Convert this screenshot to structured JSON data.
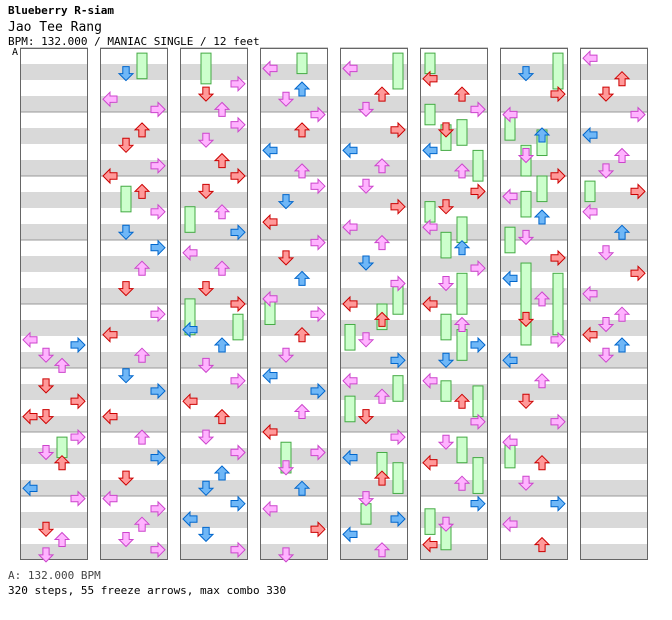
{
  "header": {
    "artist": "Blueberry R-siam",
    "title": "Jao Tee Rang",
    "info": "BPM: 132.000 / MANIAC SINGLE / 12 feet"
  },
  "marker": "A",
  "footer": {
    "bpm": "A: 132.000 BPM",
    "stats": "320 steps, 55 freeze arrows, max combo 330"
  },
  "colors": {
    "note_red": "#ff9999",
    "note_blue": "#6fb7f7",
    "note_pink": "#ffb3ff",
    "freeze": "#ccffcc"
  },
  "chart_data": {
    "type": "table",
    "columns": 8,
    "measures_per_column": 8,
    "lanes": [
      "left",
      "down",
      "up",
      "right"
    ],
    "notes": [
      {
        "c": 0,
        "l": 0,
        "y": 0.57
      },
      {
        "c": 0,
        "l": 1,
        "y": 0.6
      },
      {
        "c": 0,
        "l": 2,
        "y": 0.62
      },
      {
        "c": 0,
        "l": 3,
        "y": 0.58
      },
      {
        "c": 0,
        "l": 1,
        "y": 0.66
      },
      {
        "c": 0,
        "l": 3,
        "y": 0.69
      },
      {
        "c": 0,
        "l": 0,
        "y": 0.72
      },
      {
        "c": 0,
        "l": 1,
        "y": 0.72
      },
      {
        "c": 0,
        "l": 3,
        "y": 0.76
      },
      {
        "c": 0,
        "l": 1,
        "y": 0.79
      },
      {
        "c": 0,
        "l": 2,
        "y": 0.81
      },
      {
        "c": 0,
        "l": 0,
        "y": 0.86
      },
      {
        "c": 0,
        "l": 3,
        "y": 0.88
      },
      {
        "c": 0,
        "l": 1,
        "y": 0.94
      },
      {
        "c": 0,
        "l": 2,
        "y": 0.96
      },
      {
        "c": 0,
        "l": 1,
        "y": 0.99
      },
      {
        "c": 1,
        "l": 1,
        "y": 0.05
      },
      {
        "c": 1,
        "l": 3,
        "y": 0.12
      },
      {
        "c": 1,
        "l": 0,
        "y": 0.1
      },
      {
        "c": 1,
        "l": 2,
        "y": 0.16
      },
      {
        "c": 1,
        "l": 1,
        "y": 0.19
      },
      {
        "c": 1,
        "l": 3,
        "y": 0.23
      },
      {
        "c": 1,
        "l": 0,
        "y": 0.25
      },
      {
        "c": 1,
        "l": 2,
        "y": 0.28
      },
      {
        "c": 1,
        "l": 3,
        "y": 0.32
      },
      {
        "c": 1,
        "l": 1,
        "y": 0.36
      },
      {
        "c": 1,
        "l": 3,
        "y": 0.39
      },
      {
        "c": 1,
        "l": 2,
        "y": 0.43
      },
      {
        "c": 1,
        "l": 1,
        "y": 0.47
      },
      {
        "c": 1,
        "l": 3,
        "y": 0.52
      },
      {
        "c": 1,
        "l": 0,
        "y": 0.56
      },
      {
        "c": 1,
        "l": 2,
        "y": 0.6
      },
      {
        "c": 1,
        "l": 1,
        "y": 0.64
      },
      {
        "c": 1,
        "l": 3,
        "y": 0.67
      },
      {
        "c": 1,
        "l": 0,
        "y": 0.72
      },
      {
        "c": 1,
        "l": 2,
        "y": 0.76
      },
      {
        "c": 1,
        "l": 3,
        "y": 0.8
      },
      {
        "c": 1,
        "l": 1,
        "y": 0.84
      },
      {
        "c": 1,
        "l": 0,
        "y": 0.88
      },
      {
        "c": 1,
        "l": 3,
        "y": 0.9
      },
      {
        "c": 1,
        "l": 2,
        "y": 0.93
      },
      {
        "c": 1,
        "l": 1,
        "y": 0.96
      },
      {
        "c": 1,
        "l": 3,
        "y": 0.98
      },
      {
        "c": 2,
        "l": 3,
        "y": 0.07
      },
      {
        "c": 2,
        "l": 1,
        "y": 0.09
      },
      {
        "c": 2,
        "l": 2,
        "y": 0.12
      },
      {
        "c": 2,
        "l": 3,
        "y": 0.15
      },
      {
        "c": 2,
        "l": 1,
        "y": 0.18
      },
      {
        "c": 2,
        "l": 2,
        "y": 0.22
      },
      {
        "c": 2,
        "l": 3,
        "y": 0.25
      },
      {
        "c": 2,
        "l": 1,
        "y": 0.28
      },
      {
        "c": 2,
        "l": 2,
        "y": 0.32
      },
      {
        "c": 2,
        "l": 3,
        "y": 0.36
      },
      {
        "c": 2,
        "l": 0,
        "y": 0.4
      },
      {
        "c": 2,
        "l": 2,
        "y": 0.43
      },
      {
        "c": 2,
        "l": 1,
        "y": 0.47
      },
      {
        "c": 2,
        "l": 3,
        "y": 0.5
      },
      {
        "c": 2,
        "l": 0,
        "y": 0.55
      },
      {
        "c": 2,
        "l": 2,
        "y": 0.58
      },
      {
        "c": 2,
        "l": 1,
        "y": 0.62
      },
      {
        "c": 2,
        "l": 3,
        "y": 0.65
      },
      {
        "c": 2,
        "l": 0,
        "y": 0.69
      },
      {
        "c": 2,
        "l": 2,
        "y": 0.72
      },
      {
        "c": 2,
        "l": 1,
        "y": 0.76
      },
      {
        "c": 2,
        "l": 3,
        "y": 0.79
      },
      {
        "c": 2,
        "l": 2,
        "y": 0.83
      },
      {
        "c": 2,
        "l": 1,
        "y": 0.86
      },
      {
        "c": 2,
        "l": 3,
        "y": 0.89
      },
      {
        "c": 2,
        "l": 0,
        "y": 0.92
      },
      {
        "c": 2,
        "l": 1,
        "y": 0.95
      },
      {
        "c": 2,
        "l": 3,
        "y": 0.98
      },
      {
        "c": 3,
        "l": 0,
        "y": 0.04
      },
      {
        "c": 3,
        "l": 2,
        "y": 0.08
      },
      {
        "c": 3,
        "l": 1,
        "y": 0.1
      },
      {
        "c": 3,
        "l": 3,
        "y": 0.13
      },
      {
        "c": 3,
        "l": 2,
        "y": 0.16
      },
      {
        "c": 3,
        "l": 0,
        "y": 0.2
      },
      {
        "c": 3,
        "l": 2,
        "y": 0.24
      },
      {
        "c": 3,
        "l": 3,
        "y": 0.27
      },
      {
        "c": 3,
        "l": 1,
        "y": 0.3
      },
      {
        "c": 3,
        "l": 0,
        "y": 0.34
      },
      {
        "c": 3,
        "l": 3,
        "y": 0.38
      },
      {
        "c": 3,
        "l": 1,
        "y": 0.41
      },
      {
        "c": 3,
        "l": 2,
        "y": 0.45
      },
      {
        "c": 3,
        "l": 0,
        "y": 0.49
      },
      {
        "c": 3,
        "l": 3,
        "y": 0.52
      },
      {
        "c": 3,
        "l": 2,
        "y": 0.56
      },
      {
        "c": 3,
        "l": 1,
        "y": 0.6
      },
      {
        "c": 3,
        "l": 0,
        "y": 0.64
      },
      {
        "c": 3,
        "l": 3,
        "y": 0.67
      },
      {
        "c": 3,
        "l": 2,
        "y": 0.71
      },
      {
        "c": 3,
        "l": 0,
        "y": 0.75
      },
      {
        "c": 3,
        "l": 3,
        "y": 0.79
      },
      {
        "c": 3,
        "l": 1,
        "y": 0.82
      },
      {
        "c": 3,
        "l": 2,
        "y": 0.86
      },
      {
        "c": 3,
        "l": 0,
        "y": 0.9
      },
      {
        "c": 3,
        "l": 3,
        "y": 0.94
      },
      {
        "c": 3,
        "l": 1,
        "y": 0.99
      },
      {
        "c": 4,
        "l": 0,
        "y": 0.04
      },
      {
        "c": 4,
        "l": 2,
        "y": 0.09
      },
      {
        "c": 4,
        "l": 1,
        "y": 0.12
      },
      {
        "c": 4,
        "l": 3,
        "y": 0.16
      },
      {
        "c": 4,
        "l": 0,
        "y": 0.2
      },
      {
        "c": 4,
        "l": 2,
        "y": 0.23
      },
      {
        "c": 4,
        "l": 1,
        "y": 0.27
      },
      {
        "c": 4,
        "l": 3,
        "y": 0.31
      },
      {
        "c": 4,
        "l": 0,
        "y": 0.35
      },
      {
        "c": 4,
        "l": 2,
        "y": 0.38
      },
      {
        "c": 4,
        "l": 1,
        "y": 0.42
      },
      {
        "c": 4,
        "l": 3,
        "y": 0.46
      },
      {
        "c": 4,
        "l": 0,
        "y": 0.5
      },
      {
        "c": 4,
        "l": 2,
        "y": 0.53
      },
      {
        "c": 4,
        "l": 1,
        "y": 0.57
      },
      {
        "c": 4,
        "l": 3,
        "y": 0.61
      },
      {
        "c": 4,
        "l": 0,
        "y": 0.65
      },
      {
        "c": 4,
        "l": 2,
        "y": 0.68
      },
      {
        "c": 4,
        "l": 1,
        "y": 0.72
      },
      {
        "c": 4,
        "l": 3,
        "y": 0.76
      },
      {
        "c": 4,
        "l": 0,
        "y": 0.8
      },
      {
        "c": 4,
        "l": 2,
        "y": 0.84
      },
      {
        "c": 4,
        "l": 1,
        "y": 0.88
      },
      {
        "c": 4,
        "l": 3,
        "y": 0.92
      },
      {
        "c": 4,
        "l": 0,
        "y": 0.95
      },
      {
        "c": 4,
        "l": 2,
        "y": 0.98
      },
      {
        "c": 5,
        "l": 0,
        "y": 0.06
      },
      {
        "c": 5,
        "l": 2,
        "y": 0.09
      },
      {
        "c": 5,
        "l": 3,
        "y": 0.12
      },
      {
        "c": 5,
        "l": 1,
        "y": 0.16
      },
      {
        "c": 5,
        "l": 0,
        "y": 0.2
      },
      {
        "c": 5,
        "l": 2,
        "y": 0.24
      },
      {
        "c": 5,
        "l": 3,
        "y": 0.28
      },
      {
        "c": 5,
        "l": 1,
        "y": 0.31
      },
      {
        "c": 5,
        "l": 0,
        "y": 0.35
      },
      {
        "c": 5,
        "l": 2,
        "y": 0.39
      },
      {
        "c": 5,
        "l": 3,
        "y": 0.43
      },
      {
        "c": 5,
        "l": 1,
        "y": 0.46
      },
      {
        "c": 5,
        "l": 0,
        "y": 0.5
      },
      {
        "c": 5,
        "l": 2,
        "y": 0.54
      },
      {
        "c": 5,
        "l": 3,
        "y": 0.58
      },
      {
        "c": 5,
        "l": 1,
        "y": 0.61
      },
      {
        "c": 5,
        "l": 0,
        "y": 0.65
      },
      {
        "c": 5,
        "l": 2,
        "y": 0.69
      },
      {
        "c": 5,
        "l": 3,
        "y": 0.73
      },
      {
        "c": 5,
        "l": 1,
        "y": 0.77
      },
      {
        "c": 5,
        "l": 0,
        "y": 0.81
      },
      {
        "c": 5,
        "l": 2,
        "y": 0.85
      },
      {
        "c": 5,
        "l": 3,
        "y": 0.89
      },
      {
        "c": 5,
        "l": 1,
        "y": 0.93
      },
      {
        "c": 5,
        "l": 0,
        "y": 0.97
      },
      {
        "c": 6,
        "l": 1,
        "y": 0.05
      },
      {
        "c": 6,
        "l": 3,
        "y": 0.09
      },
      {
        "c": 6,
        "l": 0,
        "y": 0.13
      },
      {
        "c": 6,
        "l": 2,
        "y": 0.17
      },
      {
        "c": 6,
        "l": 1,
        "y": 0.21
      },
      {
        "c": 6,
        "l": 3,
        "y": 0.25
      },
      {
        "c": 6,
        "l": 0,
        "y": 0.29
      },
      {
        "c": 6,
        "l": 2,
        "y": 0.33
      },
      {
        "c": 6,
        "l": 1,
        "y": 0.37
      },
      {
        "c": 6,
        "l": 3,
        "y": 0.41
      },
      {
        "c": 6,
        "l": 0,
        "y": 0.45
      },
      {
        "c": 6,
        "l": 2,
        "y": 0.49
      },
      {
        "c": 6,
        "l": 1,
        "y": 0.53
      },
      {
        "c": 6,
        "l": 3,
        "y": 0.57
      },
      {
        "c": 6,
        "l": 0,
        "y": 0.61
      },
      {
        "c": 6,
        "l": 2,
        "y": 0.65
      },
      {
        "c": 6,
        "l": 1,
        "y": 0.69
      },
      {
        "c": 6,
        "l": 3,
        "y": 0.73
      },
      {
        "c": 6,
        "l": 0,
        "y": 0.77
      },
      {
        "c": 6,
        "l": 2,
        "y": 0.81
      },
      {
        "c": 6,
        "l": 1,
        "y": 0.85
      },
      {
        "c": 6,
        "l": 3,
        "y": 0.89
      },
      {
        "c": 6,
        "l": 0,
        "y": 0.93
      },
      {
        "c": 6,
        "l": 2,
        "y": 0.97
      },
      {
        "c": 7,
        "l": 0,
        "y": 0.02
      },
      {
        "c": 7,
        "l": 2,
        "y": 0.06
      },
      {
        "c": 7,
        "l": 1,
        "y": 0.09
      },
      {
        "c": 7,
        "l": 3,
        "y": 0.13
      },
      {
        "c": 7,
        "l": 0,
        "y": 0.17
      },
      {
        "c": 7,
        "l": 2,
        "y": 0.21
      },
      {
        "c": 7,
        "l": 1,
        "y": 0.24
      },
      {
        "c": 7,
        "l": 3,
        "y": 0.28
      },
      {
        "c": 7,
        "l": 0,
        "y": 0.32
      },
      {
        "c": 7,
        "l": 2,
        "y": 0.36
      },
      {
        "c": 7,
        "l": 1,
        "y": 0.4
      },
      {
        "c": 7,
        "l": 3,
        "y": 0.44
      },
      {
        "c": 7,
        "l": 0,
        "y": 0.48
      },
      {
        "c": 7,
        "l": 2,
        "y": 0.52
      },
      {
        "c": 7,
        "l": 1,
        "y": 0.54
      },
      {
        "c": 7,
        "l": 0,
        "y": 0.56
      },
      {
        "c": 7,
        "l": 2,
        "y": 0.58
      },
      {
        "c": 7,
        "l": 1,
        "y": 0.6
      }
    ],
    "freezes": [
      {
        "c": 0,
        "l": 2,
        "y0": 0.76,
        "y1": 0.8
      },
      {
        "c": 1,
        "l": 1,
        "y0": 0.27,
        "y1": 0.32
      },
      {
        "c": 1,
        "l": 2,
        "y0": 0.01,
        "y1": 0.06
      },
      {
        "c": 2,
        "l": 1,
        "y0": 0.01,
        "y1": 0.07
      },
      {
        "c": 2,
        "l": 0,
        "y0": 0.31,
        "y1": 0.36
      },
      {
        "c": 2,
        "l": 0,
        "y0": 0.49,
        "y1": 0.56
      },
      {
        "c": 2,
        "l": 3,
        "y0": 0.52,
        "y1": 0.57
      },
      {
        "c": 3,
        "l": 2,
        "y0": 0.01,
        "y1": 0.05
      },
      {
        "c": 3,
        "l": 0,
        "y0": 0.49,
        "y1": 0.54
      },
      {
        "c": 3,
        "l": 1,
        "y0": 0.77,
        "y1": 0.83
      },
      {
        "c": 4,
        "l": 3,
        "y0": 0.01,
        "y1": 0.08
      },
      {
        "c": 4,
        "l": 3,
        "y0": 0.46,
        "y1": 0.52
      },
      {
        "c": 4,
        "l": 0,
        "y0": 0.54,
        "y1": 0.59
      },
      {
        "c": 4,
        "l": 2,
        "y0": 0.5,
        "y1": 0.55
      },
      {
        "c": 4,
        "l": 3,
        "y0": 0.64,
        "y1": 0.69
      },
      {
        "c": 4,
        "l": 0,
        "y0": 0.68,
        "y1": 0.73
      },
      {
        "c": 4,
        "l": 2,
        "y0": 0.79,
        "y1": 0.84
      },
      {
        "c": 4,
        "l": 3,
        "y0": 0.81,
        "y1": 0.87
      },
      {
        "c": 4,
        "l": 1,
        "y0": 0.89,
        "y1": 0.93
      },
      {
        "c": 5,
        "l": 0,
        "y0": 0.01,
        "y1": 0.05
      },
      {
        "c": 5,
        "l": 0,
        "y0": 0.11,
        "y1": 0.15
      },
      {
        "c": 5,
        "l": 1,
        "y0": 0.15,
        "y1": 0.2
      },
      {
        "c": 5,
        "l": 2,
        "y0": 0.14,
        "y1": 0.19
      },
      {
        "c": 5,
        "l": 3,
        "y0": 0.2,
        "y1": 0.26
      },
      {
        "c": 5,
        "l": 0,
        "y0": 0.3,
        "y1": 0.34
      },
      {
        "c": 5,
        "l": 2,
        "y0": 0.33,
        "y1": 0.38
      },
      {
        "c": 5,
        "l": 1,
        "y0": 0.36,
        "y1": 0.41
      },
      {
        "c": 5,
        "l": 2,
        "y0": 0.44,
        "y1": 0.52
      },
      {
        "c": 5,
        "l": 1,
        "y0": 0.52,
        "y1": 0.57
      },
      {
        "c": 5,
        "l": 2,
        "y0": 0.55,
        "y1": 0.61
      },
      {
        "c": 5,
        "l": 1,
        "y0": 0.65,
        "y1": 0.69
      },
      {
        "c": 5,
        "l": 3,
        "y0": 0.66,
        "y1": 0.72
      },
      {
        "c": 5,
        "l": 2,
        "y0": 0.76,
        "y1": 0.81
      },
      {
        "c": 5,
        "l": 3,
        "y0": 0.8,
        "y1": 0.87
      },
      {
        "c": 5,
        "l": 0,
        "y0": 0.9,
        "y1": 0.95
      },
      {
        "c": 5,
        "l": 1,
        "y0": 0.93,
        "y1": 0.98
      },
      {
        "c": 6,
        "l": 3,
        "y0": 0.01,
        "y1": 0.08
      },
      {
        "c": 6,
        "l": 0,
        "y0": 0.13,
        "y1": 0.18
      },
      {
        "c": 6,
        "l": 2,
        "y0": 0.16,
        "y1": 0.21
      },
      {
        "c": 6,
        "l": 1,
        "y0": 0.19,
        "y1": 0.25
      },
      {
        "c": 6,
        "l": 2,
        "y0": 0.25,
        "y1": 0.3
      },
      {
        "c": 6,
        "l": 1,
        "y0": 0.28,
        "y1": 0.33
      },
      {
        "c": 6,
        "l": 0,
        "y0": 0.35,
        "y1": 0.4
      },
      {
        "c": 6,
        "l": 1,
        "y0": 0.42,
        "y1": 0.58
      },
      {
        "c": 6,
        "l": 3,
        "y0": 0.44,
        "y1": 0.56
      },
      {
        "c": 6,
        "l": 0,
        "y0": 0.77,
        "y1": 0.82
      },
      {
        "c": 7,
        "l": 0,
        "y0": 0.26,
        "y1": 0.3
      }
    ]
  }
}
